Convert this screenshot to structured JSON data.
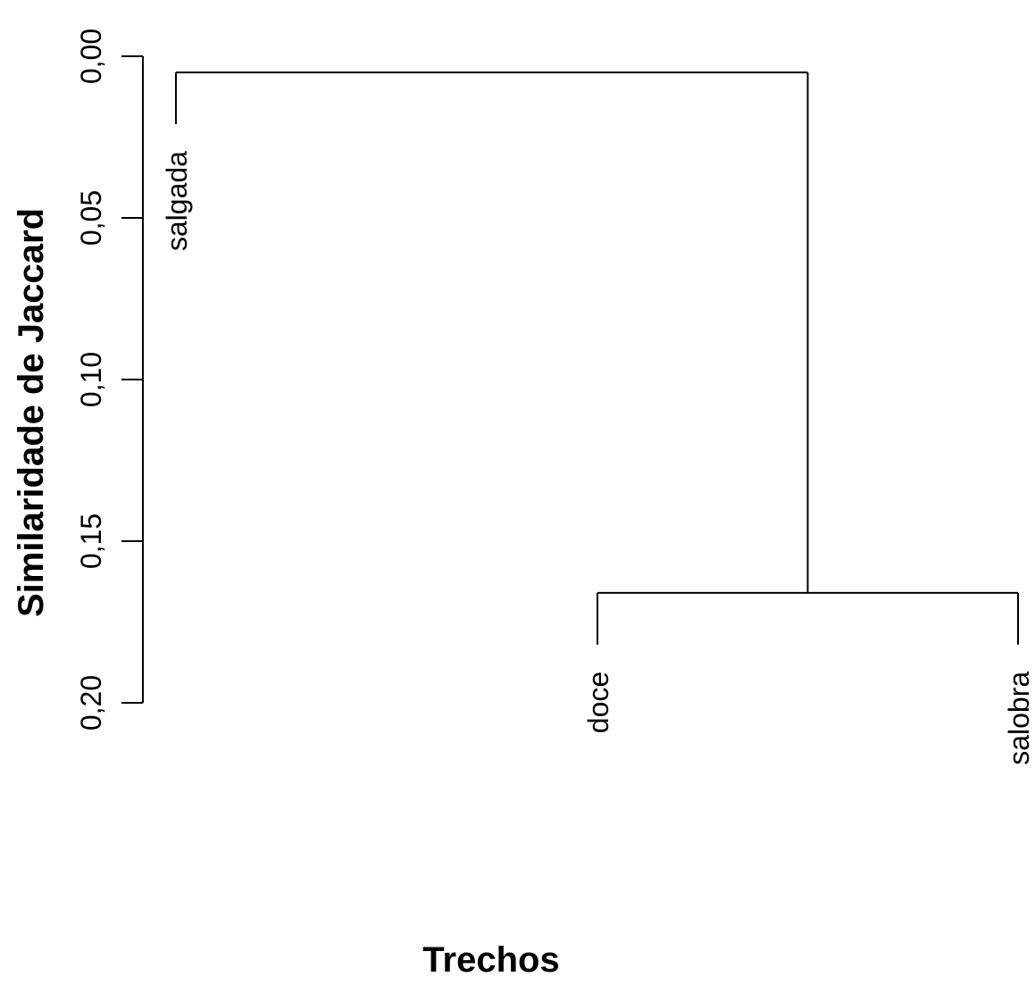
{
  "chart_data": {
    "type": "dendrogram",
    "title": "",
    "xlabel": "Trechos",
    "ylabel": "Similaridade de Jaccard",
    "ylim": [
      0.0,
      0.2
    ],
    "y_inverted": true,
    "y_ticks": [
      {
        "value": 0.0,
        "label": "0,00"
      },
      {
        "value": 0.05,
        "label": "0,05"
      },
      {
        "value": 0.1,
        "label": "0,10"
      },
      {
        "value": 0.15,
        "label": "0,15"
      },
      {
        "value": 0.2,
        "label": "0,20"
      }
    ],
    "leaves": [
      {
        "label": "salgada",
        "height": 0.021
      },
      {
        "label": "doce",
        "height": 0.182
      },
      {
        "label": "salobra",
        "height": 0.182
      }
    ],
    "merges": [
      {
        "children": [
          "doce",
          "salobra"
        ],
        "height": 0.166
      },
      {
        "children": [
          "salgada",
          "doce+salobra"
        ],
        "height": 0.005
      }
    ]
  }
}
